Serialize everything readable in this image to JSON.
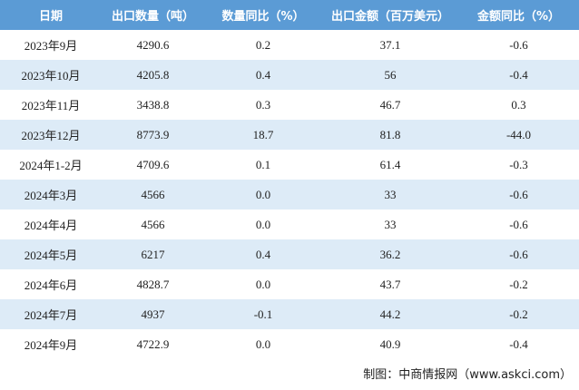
{
  "table": {
    "header": [
      "日期",
      "出口数量（吨）",
      "数量同比（%）",
      "出口金额（百万美元）",
      "金额同比（%）"
    ],
    "rows": [
      [
        "2023年9月",
        "4290.6",
        "0.2",
        "37.1",
        "-0.6"
      ],
      [
        "2023年10月",
        "4205.8",
        "0.4",
        "56",
        "-0.4"
      ],
      [
        "2023年11月",
        "3438.8",
        "0.3",
        "46.7",
        "0.3"
      ],
      [
        "2023年12月",
        "8773.9",
        "18.7",
        "81.8",
        "-44.0"
      ],
      [
        "2024年1-2月",
        "4709.6",
        "0.1",
        "61.4",
        "-0.3"
      ],
      [
        "2024年3月",
        "4566",
        "0.0",
        "33",
        "-0.6"
      ],
      [
        "2024年4月",
        "4566",
        "0.0",
        "33",
        "-0.6"
      ],
      [
        "2024年5月",
        "6217",
        "0.4",
        "36.2",
        "-0.6"
      ],
      [
        "2024年6月",
        "4828.7",
        "0.0",
        "43.7",
        "-0.2"
      ],
      [
        "2024年7月",
        "4937",
        "-0.1",
        "44.2",
        "-0.2"
      ],
      [
        "2024年9月",
        "4722.9",
        "0.0",
        "40.9",
        "-0.4"
      ]
    ]
  },
  "footer": "制图：中商情报网（www.askci.com）"
}
